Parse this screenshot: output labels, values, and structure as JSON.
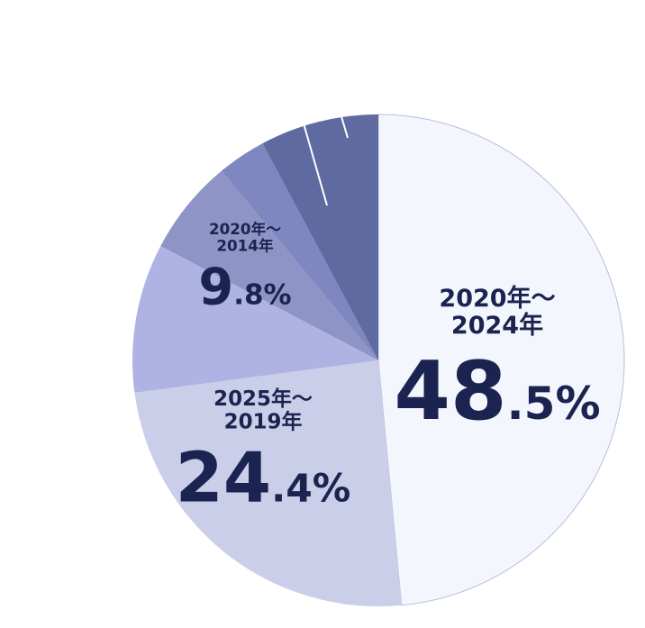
{
  "chart_data": {
    "type": "pie",
    "categories": [
      "2020年～2024年",
      "2025年～2019年",
      "2020年～2014年",
      null,
      null,
      null
    ],
    "values": [
      48.5,
      24.4,
      9.8,
      6.3,
      3.2,
      7.8
    ],
    "value_labels": [
      "48.5%",
      "24.4%",
      "9.8%",
      null,
      null,
      null
    ],
    "colors": [
      "#f4f6fd",
      "#cbcee8",
      "#aeb3e3",
      "#8e95c6",
      "#7e87c0",
      "#5e6aa0"
    ]
  }
}
